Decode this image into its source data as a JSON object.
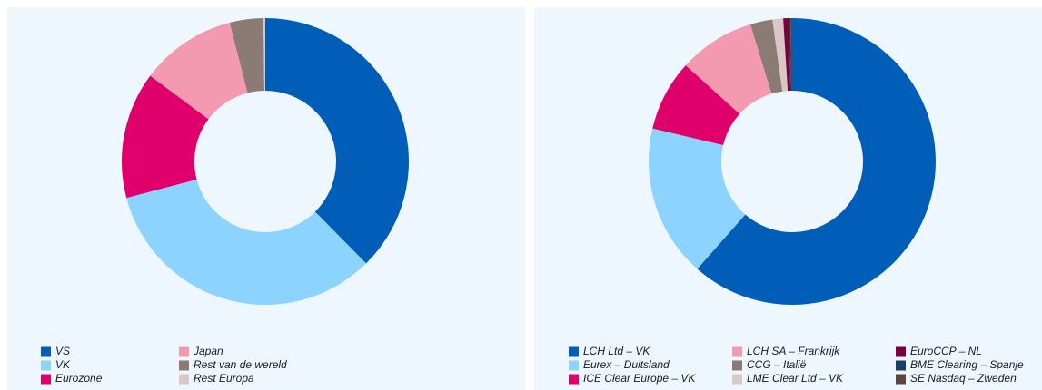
{
  "chart_data": [
    {
      "type": "donut",
      "categories": [
        "VS",
        "VK",
        "Eurozone",
        "Japan",
        "Rest van de wereld",
        "Rest Europa"
      ],
      "values": [
        37.6,
        33.3,
        14.3,
        10.8,
        3.8,
        0.2
      ],
      "colors": [
        "#005eb8",
        "#8dd3ff",
        "#e0006b",
        "#f49ab0",
        "#8c7b75",
        "#d8c8c6"
      ]
    },
    {
      "type": "donut",
      "categories": [
        "LCH Ltd – VK",
        "Eurex – Duitsland",
        "ICE Clear Europe – VK",
        "LCH SA – Frankrijk",
        "CCG – Italië",
        "LME Clear Ltd – VK",
        "EuroCCP – NL",
        "BME Clearing – Spanje",
        "SE Nasdaq – Zweden"
      ],
      "values": [
        61.5,
        17.2,
        8.0,
        8.6,
        2.5,
        1.2,
        0.6,
        0.2,
        0.2
      ],
      "colors": [
        "#005eb8",
        "#8dd3ff",
        "#e0006b",
        "#f49ab0",
        "#8c7b75",
        "#d8c8c6",
        "#7a0040",
        "#1f3a6e",
        "#5a4540"
      ]
    }
  ]
}
